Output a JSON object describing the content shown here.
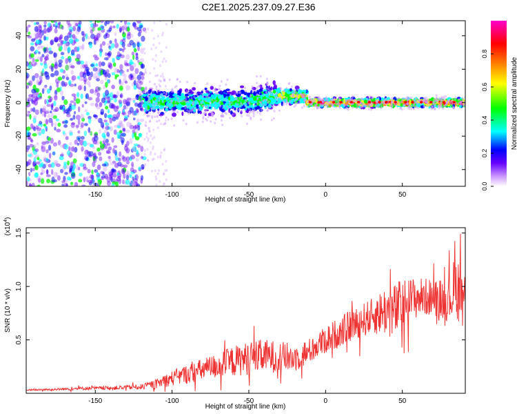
{
  "title": "C2E1.2025.237.09.27.E36",
  "chart_data": [
    {
      "type": "heatmap",
      "title": "C2E1.2025.237.09.27.E36",
      "xlabel": "Height of straight line (km)",
      "ylabel": "Frequency (Hz)",
      "xlim": [
        -195,
        91
      ],
      "ylim": [
        -50,
        49
      ],
      "x_ticks": [
        "-150",
        "-100",
        "-50",
        "0",
        "50"
      ],
      "y_ticks": [
        "40",
        "20",
        "0",
        "-20",
        "-40"
      ],
      "x_tick_values": [
        -150,
        -100,
        -50,
        0,
        50
      ],
      "y_tick_values": [
        40,
        20,
        0,
        -20,
        -40
      ],
      "colorbar": {
        "label": "Normalized spectral amplitude",
        "range": [
          0,
          1
        ],
        "ticks": [
          "0.0",
          "0.2",
          "0.4",
          "0.6",
          "0.8"
        ],
        "tick_values": [
          0.0,
          0.2,
          0.4,
          0.6,
          0.8
        ],
        "colors": [
          "#ffffff",
          "#cc99ff",
          "#6600ff",
          "#0000ff",
          "#00ffff",
          "#00ff00",
          "#ffff00",
          "#ff8000",
          "#ff0000",
          "#ff00cc"
        ]
      },
      "regions": [
        {
          "x": [
            -195,
            -118
          ],
          "f_spread": 50,
          "amplitude": 0.15,
          "description": "noise"
        },
        {
          "x": [
            -118,
            -30
          ],
          "f_center": 0,
          "f_width": 6,
          "amplitude": 0.35
        },
        {
          "x": [
            -30,
            -12
          ],
          "f_center": 4,
          "f_width": 4,
          "amplitude": 0.5
        },
        {
          "x": [
            -12,
            91
          ],
          "f_center": 0,
          "f_width": 2,
          "amplitude": 0.75
        }
      ]
    },
    {
      "type": "line",
      "xlabel": "Height of straight line (km)",
      "ylabel": "SNR (10 * v/v)",
      "y_scale_label": "(x10",
      "y_scale_exp": "4",
      "y_scale_close": ")",
      "xlim": [
        -195,
        91
      ],
      "ylim": [
        0,
        15500
      ],
      "x_ticks": [
        "-150",
        "-100",
        "-50",
        "0",
        "50"
      ],
      "y_ticks": [
        "1.5",
        "1.0",
        "0.5"
      ],
      "x_tick_values": [
        -150,
        -100,
        -50,
        0,
        50
      ],
      "y_tick_values": [
        15000,
        10000,
        5000
      ],
      "line_color": "#ee3333",
      "series": [
        {
          "x": [
            -195,
            -180,
            -160,
            -140,
            -120,
            -110,
            -100,
            -90,
            -80,
            -70,
            -60,
            -50,
            -40,
            -30,
            -20,
            -10,
            0,
            10,
            20,
            30,
            40,
            45,
            50,
            60,
            70,
            80,
            85,
            91
          ],
          "values": [
            300,
            350,
            450,
            500,
            600,
            900,
            1400,
            1800,
            2200,
            2600,
            3000,
            3300,
            3500,
            3400,
            3300,
            4000,
            5000,
            5800,
            6600,
            7200,
            7800,
            7600,
            8400,
            9000,
            9000,
            8800,
            10000,
            9000
          ],
          "noise": [
            100,
            150,
            250,
            300,
            400,
            700,
            1200,
            1500,
            1800,
            2000,
            2400,
            2600,
            2600,
            2500,
            2200,
            2000,
            2200,
            2400,
            2500,
            2800,
            4000,
            4500,
            4000,
            3200,
            2800,
            3500,
            5500,
            4000
          ]
        }
      ]
    }
  ]
}
